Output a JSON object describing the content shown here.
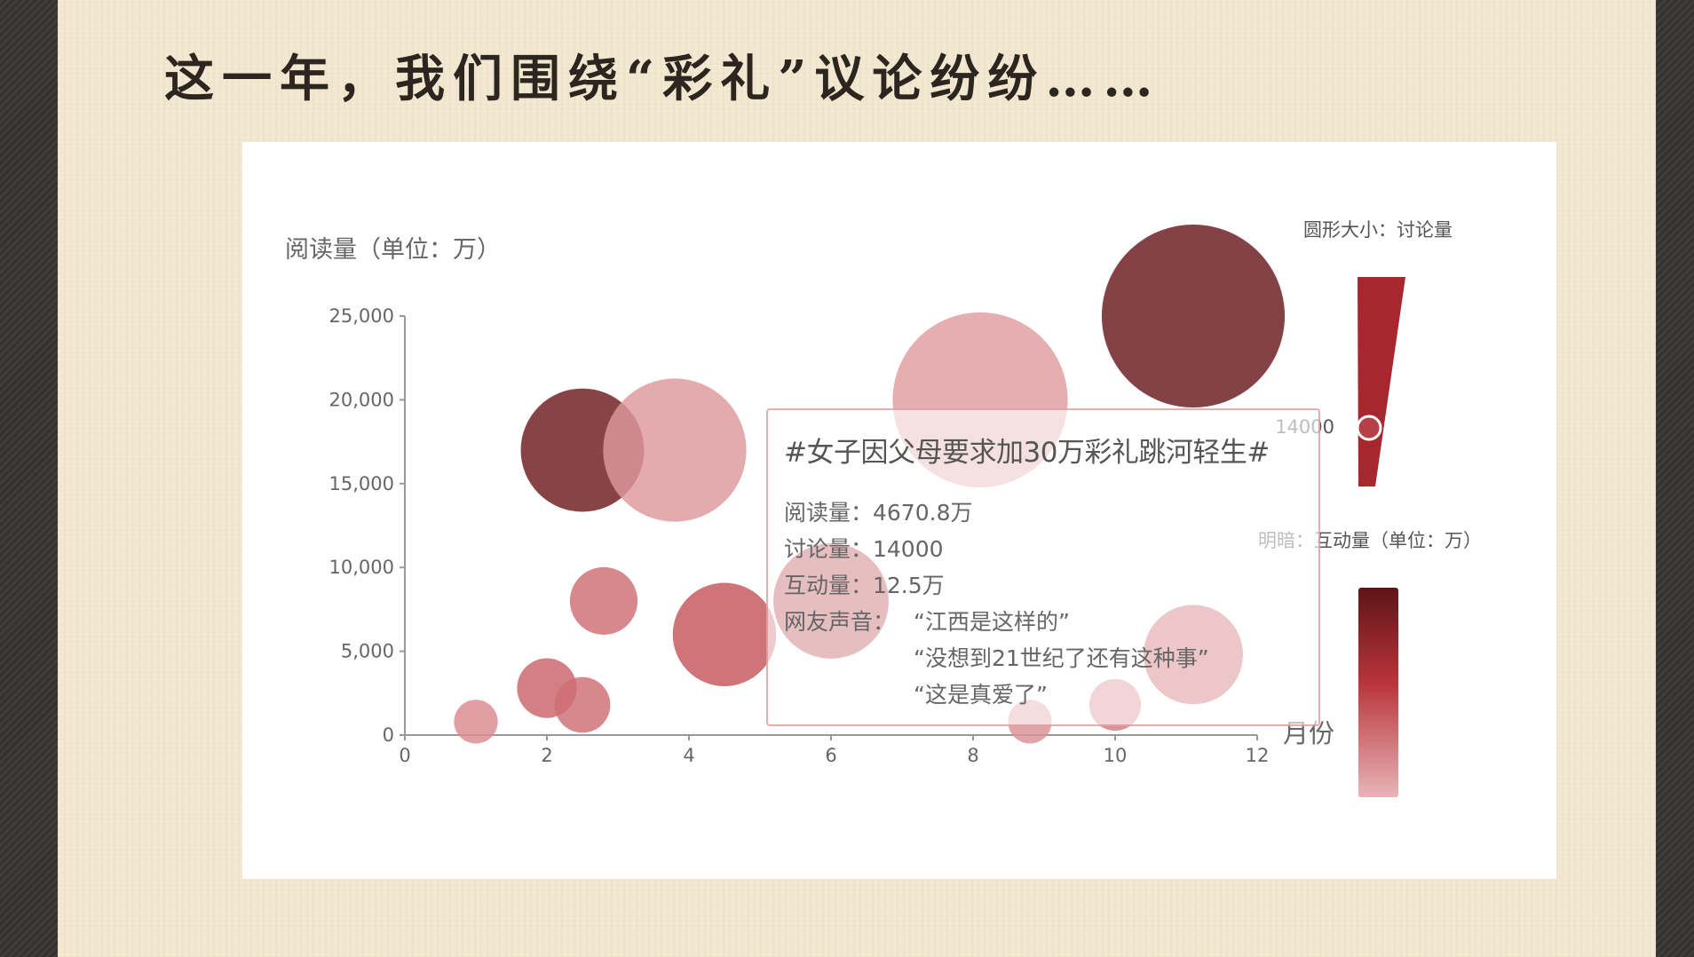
{
  "slide": {
    "heading": "这一年，我们围绕“彩礼”议论纷纷……"
  },
  "colors": {
    "background": "#f3e9d2",
    "card": "#ffffff",
    "dark_red": "#6e1a1f",
    "mid_red": "#c13a3c",
    "light_red": "#e3a5ab",
    "axis": "#999999"
  },
  "chart_data": {
    "type": "scatter",
    "variant": "bubble",
    "ylabel": "阅读量（单位：万）",
    "xlabel": "月份",
    "xlim": [
      0,
      12
    ],
    "ylim": [
      0,
      25000
    ],
    "x_ticks": [
      "0",
      "2",
      "4",
      "6",
      "8",
      "10",
      "12"
    ],
    "y_ticks": [
      "0",
      "5,000",
      "10,000",
      "15,000",
      "20,000",
      "25,000"
    ],
    "grid": false,
    "size_legend_title": "圆形大小：讨论量",
    "size_legend_value": "14000",
    "color_legend_title": "明暗：互动量（单位：万）",
    "points": [
      {
        "x": 1.0,
        "y": 800,
        "r": 0.22,
        "c": 0.18
      },
      {
        "x": 2.0,
        "y": 2800,
        "r": 0.3,
        "c": 0.35
      },
      {
        "x": 2.5,
        "y": 1800,
        "r": 0.28,
        "c": 0.3
      },
      {
        "x": 2.8,
        "y": 8000,
        "r": 0.34,
        "c": 0.3
      },
      {
        "x": 2.5,
        "y": 17000,
        "r": 0.62,
        "c": 0.92
      },
      {
        "x": 3.8,
        "y": 17000,
        "r": 0.72,
        "c": 0.12
      },
      {
        "x": 4.5,
        "y": 6000,
        "r": 0.52,
        "c": 0.4
      },
      {
        "x": 6.0,
        "y": 8000,
        "r": 0.58,
        "c": 0.6
      },
      {
        "x": 8.1,
        "y": 20000,
        "r": 0.88,
        "c": 0.1
      },
      {
        "x": 8.8,
        "y": 800,
        "r": 0.22,
        "c": 0.15
      },
      {
        "x": 10.0,
        "y": 1800,
        "r": 0.26,
        "c": 0.25
      },
      {
        "x": 11.1,
        "y": 4800,
        "r": 0.5,
        "c": 0.45
      },
      {
        "x": 11.1,
        "y": 25000,
        "r": 0.92,
        "c": 0.95
      }
    ],
    "tooltip": {
      "title": "#女子因父母要求加30万彩礼跳河轻生#",
      "reads": "阅读量：4670.8万",
      "discussions": "讨论量：14000",
      "interactions": "互动量：12.5万",
      "voices_label": "网友声音：",
      "quotes": [
        "“江西是这样的”",
        "“没想到21世纪了还有这种事”",
        "“这是真爱了”"
      ]
    }
  }
}
